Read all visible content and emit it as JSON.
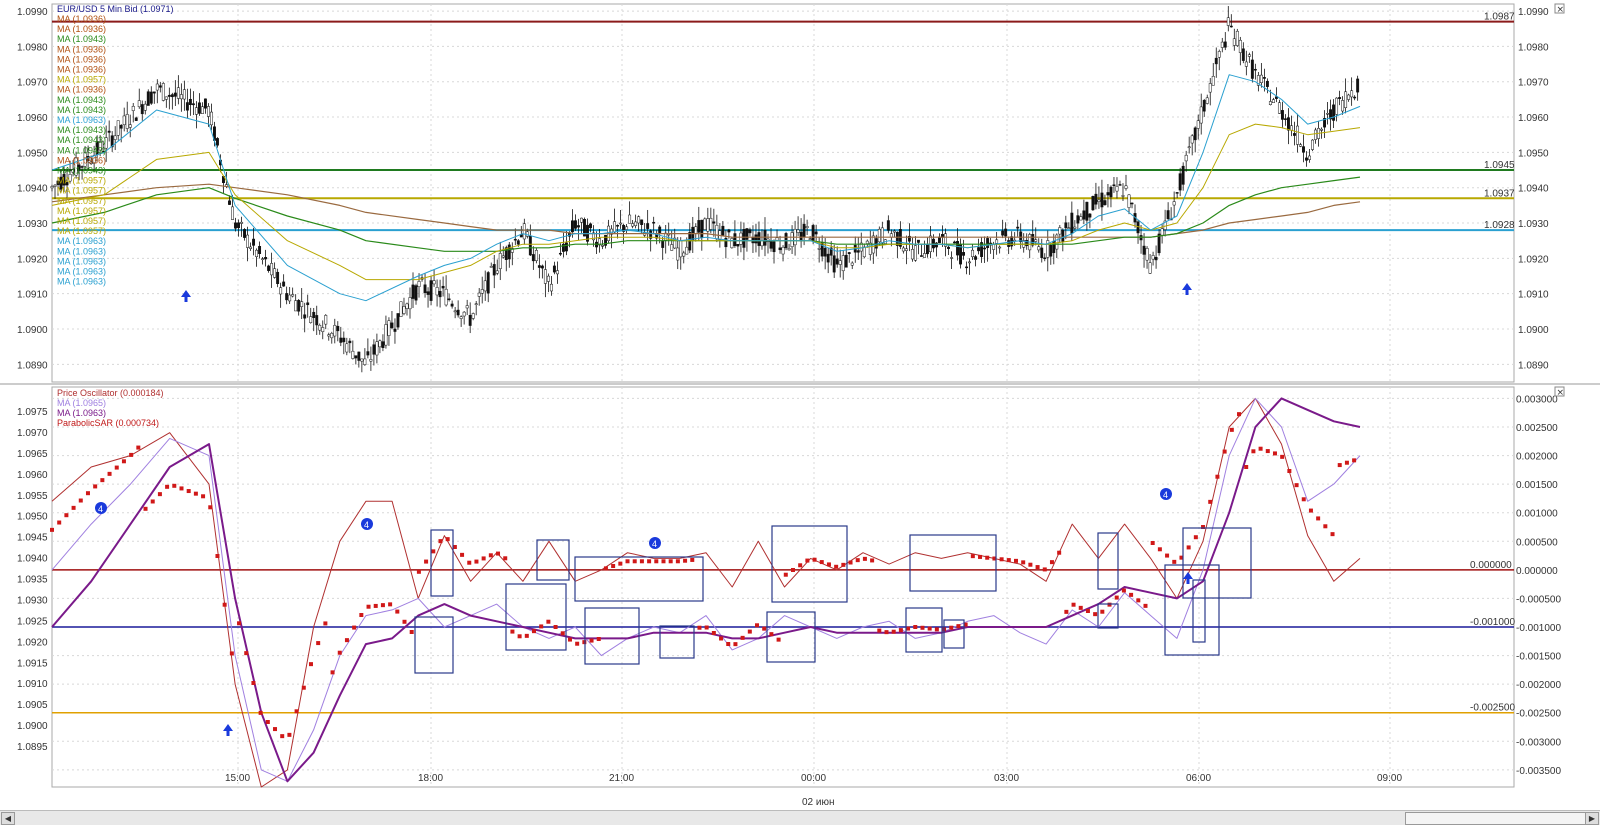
{
  "chart_data": [
    {
      "panel": "price",
      "type": "candlestick",
      "title": "EUR/USD 5 Min Bid (1.0971)",
      "ylim": [
        1.0885,
        1.0992
      ],
      "y_ticks": [
        "1.0990",
        "1.0980",
        "1.0970",
        "1.0960",
        "1.0950",
        "1.0940",
        "1.0930",
        "1.0920",
        "1.0910",
        "1.0900",
        "1.0890"
      ],
      "x_ticks": [
        "15:00",
        "18:00",
        "21:00",
        "00:00",
        "03:00",
        "06:00",
        "09:00"
      ],
      "x_sublabel": "02 июн",
      "grid": true,
      "legend": [
        "MA (1.0936)",
        "MA (1.0936)",
        "MA (1.0943)",
        "MA (1.0936)",
        "MA (1.0936)",
        "MA (1.0936)",
        "MA (1.0957)",
        "MA (1.0936)",
        "MA (1.0943)",
        "MA (1.0943)",
        "MA (1.0963)",
        "MA (1.0943)",
        "MA (1.0943)",
        "MA (1.0943)",
        "MA (1.0936)",
        "MA (1.0943)",
        "MA (1.0957)",
        "MA (1.0957)",
        "MA (1.0957)",
        "MA (1.0957)",
        "MA (1.0957)",
        "MA (1.0957)",
        "MA (1.0963)",
        "MA (1.0963)",
        "MA (1.0963)",
        "MA (1.0963)",
        "MA (1.0963)"
      ],
      "legend_colors": [
        "#b05010",
        "#b05010",
        "#2a8a1a",
        "#b05010",
        "#b05010",
        "#b05010",
        "#b8a800",
        "#b05010",
        "#2a8a1a",
        "#2a8a1a",
        "#2aa0d0",
        "#2a8a1a",
        "#2a8a1a",
        "#2a8a1a",
        "#b05010",
        "#2a8a1a",
        "#b8a800",
        "#b8a800",
        "#b8a800",
        "#b8a800",
        "#b8a800",
        "#b8a800",
        "#2aa0d0",
        "#2aa0d0",
        "#2aa0d0",
        "#2aa0d0",
        "#2aa0d0"
      ],
      "hlines": [
        {
          "value": 1.0987,
          "label": "1.0987",
          "color": "#8b1a1a"
        },
        {
          "value": 1.0945,
          "label": "1.0945",
          "color": "#1f7a1f"
        },
        {
          "value": 1.0937,
          "label": "1.0937",
          "color": "#b8a800"
        },
        {
          "value": 1.0928,
          "label": "1.0928",
          "color": "#2aa0d0"
        }
      ],
      "price_path_x": [
        0,
        4,
        8,
        12,
        14,
        18,
        22,
        24,
        28,
        30,
        32,
        34,
        36,
        38,
        40,
        42,
        44,
        46,
        48,
        50,
        52,
        54,
        56,
        58,
        60,
        62,
        64,
        66,
        68,
        70,
        72,
        74,
        76,
        78,
        80,
        82,
        84,
        86,
        88,
        90,
        92,
        94,
        96,
        98,
        100
      ],
      "price_path_y": [
        1.094,
        1.0952,
        1.0968,
        1.0962,
        1.093,
        1.091,
        1.0898,
        1.089,
        1.0912,
        1.091,
        1.0903,
        1.0918,
        1.0928,
        1.0912,
        1.093,
        1.0925,
        1.093,
        1.0928,
        1.0922,
        1.093,
        1.0925,
        1.0926,
        1.0924,
        1.0928,
        1.0918,
        1.0922,
        1.0928,
        1.0922,
        1.0925,
        1.092,
        1.0925,
        1.0926,
        1.0922,
        1.093,
        1.0936,
        1.094,
        1.0918,
        1.0938,
        1.0962,
        1.0986,
        1.0972,
        1.0962,
        1.095,
        1.0962,
        1.097
      ],
      "ma_fast_y": [
        1.0945,
        1.095,
        1.0962,
        1.0958,
        1.0935,
        1.0918,
        1.091,
        1.0908,
        1.0915,
        1.0918,
        1.092,
        1.0924,
        1.0927,
        1.0925,
        1.0927,
        1.0927,
        1.0928,
        1.0927,
        1.0925,
        1.0926,
        1.0925,
        1.0925,
        1.0925,
        1.0925,
        1.0922,
        1.0923,
        1.0925,
        1.0924,
        1.0924,
        1.0923,
        1.0924,
        1.0925,
        1.0924,
        1.0927,
        1.0932,
        1.0934,
        1.0928,
        1.0932,
        1.095,
        1.0972,
        1.097,
        1.0965,
        1.0958,
        1.096,
        1.0963
      ],
      "ma_mid_y": [
        1.0935,
        1.0938,
        1.0948,
        1.095,
        1.0938,
        1.0925,
        1.0918,
        1.0914,
        1.0914,
        1.0916,
        1.0918,
        1.0922,
        1.0924,
        1.0924,
        1.0925,
        1.0926,
        1.0926,
        1.0926,
        1.0925,
        1.0925,
        1.0925,
        1.0925,
        1.0925,
        1.0925,
        1.0923,
        1.0923,
        1.0924,
        1.0924,
        1.0924,
        1.0923,
        1.0924,
        1.0924,
        1.0924,
        1.0925,
        1.0928,
        1.093,
        1.0928,
        1.093,
        1.094,
        1.0955,
        1.0958,
        1.0957,
        1.0955,
        1.0956,
        1.0957
      ],
      "ma_slow_y": [
        1.093,
        1.0933,
        1.0938,
        1.094,
        1.0937,
        1.0932,
        1.0928,
        1.0925,
        1.0923,
        1.0922,
        1.0922,
        1.0922,
        1.0923,
        1.0923,
        1.0924,
        1.0924,
        1.0925,
        1.0925,
        1.0925,
        1.0925,
        1.0925,
        1.0925,
        1.0925,
        1.0925,
        1.0924,
        1.0924,
        1.0924,
        1.0924,
        1.0924,
        1.0924,
        1.0924,
        1.0924,
        1.0924,
        1.0924,
        1.0925,
        1.0926,
        1.0926,
        1.0927,
        1.093,
        1.0935,
        1.0938,
        1.094,
        1.0941,
        1.0942,
        1.0943
      ],
      "ma_trend_y": [
        1.0936,
        1.0938,
        1.094,
        1.0941,
        1.094,
        1.0938,
        1.0935,
        1.0933,
        1.0931,
        1.093,
        1.0929,
        1.0928,
        1.0928,
        1.0928,
        1.0927,
        1.0927,
        1.0927,
        1.0927,
        1.0927,
        1.0927,
        1.0926,
        1.0926,
        1.0926,
        1.0926,
        1.0926,
        1.0926,
        1.0926,
        1.0926,
        1.0926,
        1.0926,
        1.0926,
        1.0926,
        1.0926,
        1.0926,
        1.0926,
        1.0926,
        1.0926,
        1.0927,
        1.0928,
        1.093,
        1.0931,
        1.0932,
        1.0933,
        1.0935,
        1.0936
      ]
    },
    {
      "panel": "oscillator",
      "type": "line",
      "legend": [
        "Price Oscillator (0.000184)",
        "MA (1.0965)",
        "MA (1.0963)",
        "ParabolicSAR (0.000734)"
      ],
      "legend_colors": [
        "#b03030",
        "#a080e0",
        "#7a1a8a",
        "#c01818"
      ],
      "ylim": [
        -0.0038,
        0.0032
      ],
      "y_ticks_right": [
        "0.003000",
        "0.002500",
        "0.002000",
        "0.001500",
        "0.001000",
        "0.000500",
        "0.000000",
        "-0.000500",
        "-0.001000",
        "-0.001500",
        "-0.002000",
        "-0.002500",
        "-0.003000",
        "-0.003500"
      ],
      "y_ticks_left": [
        "1.0975",
        "1.0970",
        "1.0965",
        "1.0960",
        "1.0955",
        "1.0950",
        "1.0945",
        "1.0940",
        "1.0935",
        "1.0930",
        "1.0925",
        "1.0920",
        "1.0915",
        "1.0910",
        "1.0905",
        "1.0900",
        "1.0895"
      ],
      "hlines": [
        {
          "value": 0.0,
          "label": "0.000000",
          "color": "#a01010"
        },
        {
          "value": -0.001,
          "label": "-0.001000",
          "color": "#1a1a9a"
        },
        {
          "value": -0.0025,
          "label": "-0.002500",
          "color": "#e0a000"
        }
      ],
      "osc_x": [
        0,
        3,
        6,
        9,
        12,
        14,
        16,
        18,
        20,
        22,
        24,
        26,
        28,
        30,
        32,
        34,
        36,
        38,
        40,
        42,
        44,
        46,
        48,
        50,
        52,
        54,
        56,
        58,
        60,
        62,
        64,
        66,
        68,
        70,
        72,
        74,
        76,
        78,
        80,
        82,
        84,
        86,
        88,
        90,
        92,
        94,
        96,
        98,
        100
      ],
      "osc_y": [
        0.0012,
        0.0018,
        0.002,
        0.0024,
        0.0015,
        -0.002,
        -0.0038,
        -0.0035,
        -0.001,
        0.0005,
        0.0012,
        0.0012,
        -0.0005,
        0.0006,
        -0.0002,
        0.0003,
        -0.0002,
        0.0005,
        -0.0002,
        0.0,
        0.0003,
        0.0002,
        0.0002,
        0.0003,
        -0.0003,
        0.0005,
        -0.0003,
        0.0002,
        0.0,
        0.0003,
        0.0001,
        0.0003,
        0.0002,
        0.0003,
        0.0002,
        0.0001,
        -0.0002,
        0.0008,
        0.0002,
        0.0008,
        0.0002,
        -0.0005,
        0.0005,
        0.0025,
        0.003,
        0.0022,
        0.0006,
        -0.0002,
        0.0002
      ],
      "ma1_y": [
        0.0,
        0.0008,
        0.0015,
        0.0023,
        0.002,
        -0.0015,
        -0.0035,
        -0.0037,
        -0.0028,
        -0.0015,
        -0.0008,
        -0.0007,
        -0.0005,
        -0.001,
        -0.0008,
        -0.0006,
        -0.001,
        -0.0012,
        -0.001,
        -0.0015,
        -0.0012,
        -0.001,
        -0.0011,
        -0.0008,
        -0.0014,
        -0.0012,
        -0.0008,
        -0.001,
        -0.0012,
        -0.001,
        -0.0009,
        -0.0012,
        -0.0011,
        -0.0009,
        -0.0008,
        -0.0011,
        -0.0013,
        -0.0007,
        -0.001,
        -0.0004,
        -0.0008,
        -0.0012,
        0.0,
        0.002,
        0.003,
        0.0025,
        0.0012,
        0.0015,
        0.002
      ],
      "ma2_y": [
        -0.001,
        -0.0002,
        0.0008,
        0.0018,
        0.0022,
        -0.0005,
        -0.0025,
        -0.0037,
        -0.0032,
        -0.0022,
        -0.0013,
        -0.0012,
        -0.0008,
        -0.0006,
        -0.0008,
        -0.0009,
        -0.001,
        -0.0011,
        -0.0012,
        -0.0012,
        -0.0012,
        -0.0011,
        -0.0011,
        -0.0011,
        -0.0012,
        -0.0012,
        -0.0011,
        -0.001,
        -0.0011,
        -0.0011,
        -0.0011,
        -0.0011,
        -0.0011,
        -0.001,
        -0.001,
        -0.001,
        -0.001,
        -0.0008,
        -0.0006,
        -0.0003,
        -0.0004,
        -0.0005,
        -0.0002,
        0.001,
        0.0025,
        0.003,
        0.0028,
        0.0026,
        0.0025
      ]
    }
  ]
}
